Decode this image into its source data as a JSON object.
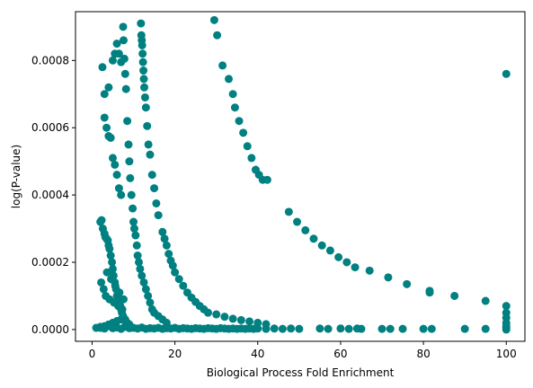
{
  "chart_data": {
    "type": "scatter",
    "title": "",
    "xlabel": "Biological Process Fold Enrichment",
    "ylabel": "log(P-value)",
    "xlim": [
      -4,
      104.5
    ],
    "ylim": [
      -3.5e-05,
      0.000945
    ],
    "xticks": [
      0,
      20,
      40,
      60,
      80,
      100
    ],
    "xtick_labels": [
      "0",
      "20",
      "40",
      "60",
      "80",
      "100"
    ],
    "yticks": [
      0,
      0.0002,
      0.0004,
      0.0006,
      0.0008
    ],
    "ytick_labels": [
      "0.0000",
      "0.0002",
      "0.0004",
      "0.0006",
      "0.0008"
    ],
    "grid": false,
    "color": "#008080",
    "series": [
      {
        "x": [
          29.5,
          30.2,
          31.5,
          33,
          34,
          34.5,
          35.5,
          36.5,
          37.5,
          38.5,
          39.5,
          40.3,
          41.2,
          42.3,
          47.5,
          49.5,
          51.5,
          53.5,
          55.5,
          57.5,
          59.5,
          61.5,
          63.5,
          67,
          71.5,
          76,
          81.5,
          81.5,
          87.5,
          95,
          100,
          100,
          100,
          100,
          100,
          100,
          100,
          100
        ],
        "y": [
          0.00092,
          0.000875,
          0.000785,
          0.000745,
          0.0007,
          0.00066,
          0.00062,
          0.000585,
          0.000545,
          0.00051,
          0.000475,
          0.00046,
          0.000445,
          0.000445,
          0.00035,
          0.00032,
          0.000295,
          0.00027,
          0.00025,
          0.000235,
          0.000215,
          0.0002,
          0.000185,
          0.000175,
          0.000155,
          0.000135,
          0.000115,
          0.00011,
          0.0001,
          8.5e-05,
          0.00076,
          7e-05,
          5e-05,
          3.5e-05,
          2e-05,
          1e-05,
          5e-06,
          0
        ]
      },
      {
        "x": [
          11.8,
          11.9,
          12,
          12.1,
          12.2,
          12.3,
          12.4,
          12.5,
          12.6,
          12.8,
          13,
          13.3,
          13.6,
          14,
          14.5,
          15,
          15.5,
          16,
          17,
          17.5,
          18,
          18.5,
          19,
          19.5,
          20,
          21,
          22,
          23,
          24,
          25,
          26,
          27,
          28,
          30,
          32,
          34,
          36,
          38,
          40,
          42
        ],
        "y": [
          0.00091,
          0.000875,
          0.00086,
          0.000845,
          0.00082,
          0.000795,
          0.00077,
          0.000745,
          0.00072,
          0.00069,
          0.00066,
          0.000605,
          0.00055,
          0.00052,
          0.00046,
          0.00042,
          0.000375,
          0.00034,
          0.00029,
          0.00027,
          0.00025,
          0.000225,
          0.000205,
          0.00019,
          0.00017,
          0.00015,
          0.00013,
          0.00011,
          9.5e-05,
          8.2e-05,
          7e-05,
          6e-05,
          5e-05,
          4.5e-05,
          3.8e-05,
          3.2e-05,
          2.8e-05,
          2.4e-05,
          2e-05,
          1.6e-05
        ]
      },
      {
        "x": [
          7.5,
          7.6,
          7.8,
          8,
          8.2,
          8.5,
          8.8,
          9,
          9.2,
          9.5,
          9.8,
          10,
          10.2,
          10.5,
          10.8,
          11,
          11.3,
          11.6,
          12,
          12.5,
          13,
          13.5,
          14,
          14.5,
          15,
          16,
          17,
          18
        ],
        "y": [
          0.0009,
          0.00086,
          0.000805,
          0.00076,
          0.000715,
          0.00062,
          0.00055,
          0.0005,
          0.00045,
          0.0004,
          0.00036,
          0.00032,
          0.0003,
          0.00028,
          0.00025,
          0.00022,
          0.0002,
          0.00018,
          0.00016,
          0.00014,
          0.00012,
          0.0001,
          8e-05,
          6e-05,
          5e-05,
          4e-05,
          3e-05,
          2e-05
        ]
      },
      {
        "x": [
          2,
          2.3,
          2.6,
          3,
          3.2,
          3.5,
          3.8,
          4,
          4.2,
          4.5,
          4.8,
          5,
          5.2,
          5.5,
          5.8,
          6,
          6.2,
          6.5,
          6.8,
          7,
          7.2,
          7.5,
          8,
          8.5,
          9,
          3,
          3.5,
          4,
          4.5,
          5,
          5.5,
          6,
          6.5,
          7,
          5,
          5.5,
          6,
          6.5,
          7,
          2.5,
          3,
          4,
          2.2,
          2.8,
          3.3,
          4.2,
          5.3,
          6.3,
          7.3,
          3.6,
          4.6,
          5.6,
          6.6,
          7.6,
          2,
          3,
          4,
          5,
          6,
          7,
          8
        ],
        "y": [
          0.00032,
          0.000325,
          0.0003,
          0.000285,
          0.000275,
          0.00027,
          0.000265,
          0.00025,
          0.00024,
          0.00022,
          0.0002,
          0.00018,
          0.00016,
          0.00014,
          0.00012,
          0.0001,
          9e-05,
          8e-05,
          7e-05,
          6e-05,
          5e-05,
          4e-05,
          3e-05,
          2e-05,
          1.5e-05,
          0.00063,
          0.0006,
          0.000575,
          0.00057,
          0.00051,
          0.00049,
          0.00046,
          0.00042,
          0.0004,
          0.0008,
          0.00082,
          0.00085,
          0.00082,
          0.000795,
          0.00078,
          0.0007,
          0.00072,
          0.00014,
          0.00012,
          0.0001,
          9e-05,
          8e-05,
          7e-05,
          6e-05,
          0.00017,
          0.00015,
          0.00013,
          0.00011,
          9e-05,
          5e-06,
          1e-05,
          1.5e-05,
          2e-05,
          2.5e-05,
          3e-05,
          1e-05
        ]
      },
      {
        "x": [
          1,
          2,
          3,
          4,
          5,
          6,
          7,
          8,
          9,
          10,
          11,
          12,
          13,
          14,
          15,
          16,
          17,
          18,
          19,
          20,
          21,
          22,
          23,
          24,
          25,
          26,
          27,
          28,
          29,
          30,
          31,
          32,
          33,
          34,
          35,
          36,
          37,
          38,
          39,
          40,
          42,
          44,
          46,
          48,
          50,
          55,
          57,
          60,
          62,
          64,
          65,
          70,
          72,
          75,
          80,
          82,
          90,
          95
        ],
        "y": [
          5e-06,
          8e-06,
          3e-06,
          1e-05,
          4e-06,
          6e-06,
          2e-06,
          8e-06,
          4e-06,
          5e-06,
          3e-06,
          6e-06,
          2e-06,
          4e-06,
          3e-06,
          5e-06,
          2e-06,
          4e-06,
          3e-06,
          5e-06,
          2e-06,
          4e-06,
          3e-06,
          2e-06,
          4e-06,
          3e-06,
          2e-06,
          4e-06,
          3e-06,
          2e-06,
          4e-06,
          3e-06,
          2e-06,
          3e-06,
          2e-06,
          3e-06,
          2e-06,
          3e-06,
          2e-06,
          3e-06,
          2e-06,
          3e-06,
          2e-06,
          3e-06,
          2e-06,
          3e-06,
          2e-06,
          3e-06,
          2e-06,
          3e-06,
          2e-06,
          2e-06,
          2e-06,
          2e-06,
          2e-06,
          2e-06,
          2e-06,
          2e-06
        ]
      }
    ]
  }
}
